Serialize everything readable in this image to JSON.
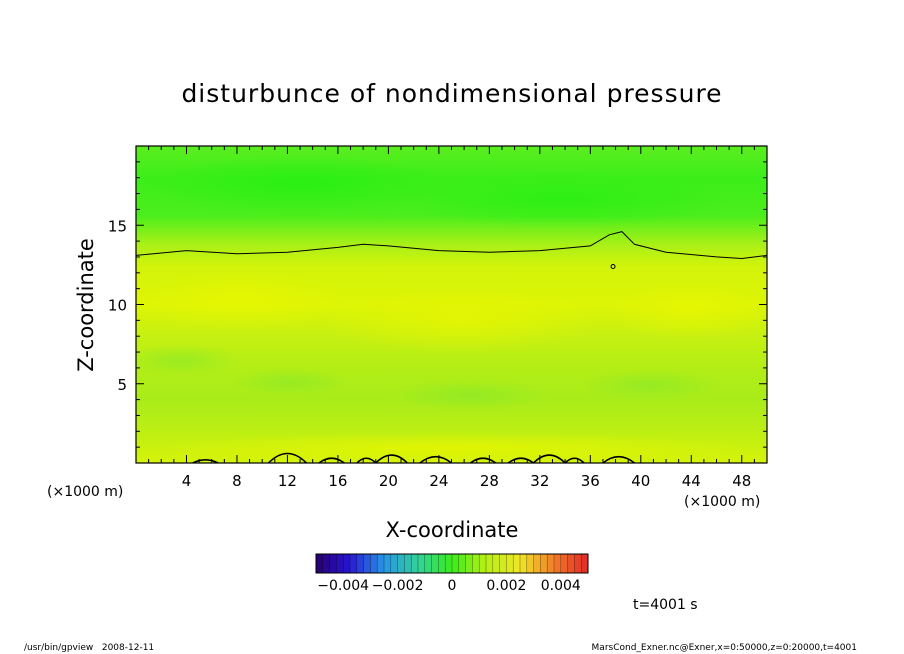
{
  "chart_data": {
    "type": "heatmap",
    "title": "disturbunce of nondimensional pressure",
    "xlabel": "X-coordinate",
    "ylabel": "Z-coordinate",
    "x_unit": "(×1000 m)",
    "z_unit": "(×1000 m)",
    "xlim": [
      0,
      50
    ],
    "ylim": [
      0,
      20
    ],
    "x_ticks": [
      4,
      8,
      12,
      16,
      20,
      24,
      28,
      32,
      36,
      40,
      44,
      48
    ],
    "y_ticks": [
      5,
      10,
      15
    ],
    "colorbar": {
      "range": [
        -0.005,
        0.005
      ],
      "tick_values": [
        -0.004,
        -0.002,
        0,
        0.002,
        0.004
      ],
      "tick_labels": [
        "−0.004",
        "−0.002",
        "0",
        "0.002",
        "0.004"
      ],
      "levels": 40
    },
    "field_bands": [
      {
        "z": [
          0,
          1.2
        ],
        "value": 0.003
      },
      {
        "z": [
          1.2,
          3.5
        ],
        "value": 0.0016
      },
      {
        "z": [
          3.5,
          5.5
        ],
        "value": 0.002
      },
      {
        "z": [
          5.5,
          8.0
        ],
        "value": 0.0024
      },
      {
        "z": [
          8.0,
          11.5
        ],
        "value": 0.0033
      },
      {
        "z": [
          11.5,
          13.5
        ],
        "value": 0.0022
      },
      {
        "z": [
          13.5,
          16.5
        ],
        "value": 0.0008
      },
      {
        "z": [
          16.5,
          20.0
        ],
        "value": 0.0002
      }
    ],
    "contour_upper": {
      "x": [
        0,
        4,
        8,
        12,
        16,
        18,
        20,
        24,
        28,
        32,
        36,
        37.5,
        38.5,
        39.5,
        42,
        46,
        48,
        50
      ],
      "z": [
        13.1,
        13.4,
        13.2,
        13.3,
        13.6,
        13.8,
        13.7,
        13.4,
        13.3,
        13.4,
        13.7,
        14.4,
        14.6,
        13.8,
        13.3,
        13.0,
        12.9,
        13.1
      ]
    },
    "contour_small_ring": {
      "x": 37.8,
      "z": 12.4
    },
    "contour_surface_bumps": [
      {
        "x0": 4.5,
        "x1": 6.5,
        "h": 0.2
      },
      {
        "x0": 10.5,
        "x1": 13.5,
        "h": 0.6
      },
      {
        "x0": 14.5,
        "x1": 16.5,
        "h": 0.3
      },
      {
        "x0": 17.5,
        "x1": 19.0,
        "h": 0.3
      },
      {
        "x0": 19.0,
        "x1": 21.5,
        "h": 0.5
      },
      {
        "x0": 22.5,
        "x1": 25.0,
        "h": 0.4
      },
      {
        "x0": 26.5,
        "x1": 28.5,
        "h": 0.3
      },
      {
        "x0": 29.5,
        "x1": 31.5,
        "h": 0.3
      },
      {
        "x0": 31.5,
        "x1": 34.0,
        "h": 0.5
      },
      {
        "x0": 34.0,
        "x1": 35.5,
        "h": 0.3
      },
      {
        "x0": 37.0,
        "x1": 39.5,
        "h": 0.4
      }
    ]
  },
  "time_label": "t=4001 s",
  "footer_left": "/usr/bin/gpview   2008-12-11",
  "footer_right": "MarsCond_Exner.nc@Exner,x=0:50000,z=0:20000,t=4001"
}
